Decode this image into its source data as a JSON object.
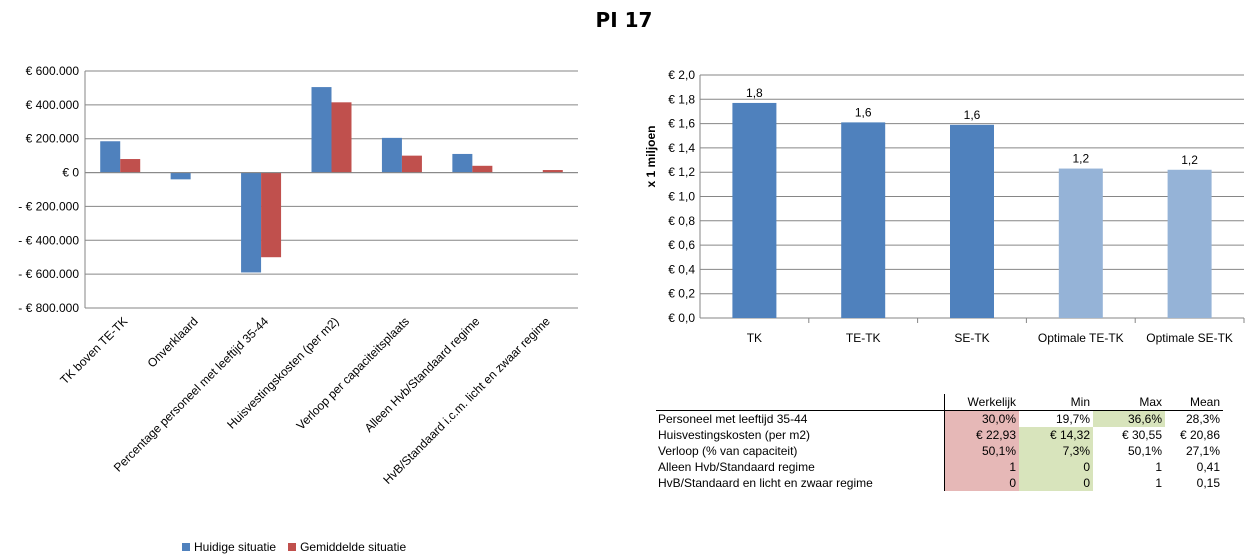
{
  "title": "PI 17",
  "colors": {
    "blue": "#4f81bd",
    "red": "#c0504d",
    "light_blue": "#95b3d7",
    "grid": "#868686",
    "highlight_red": "#e6b8b7",
    "highlight_green": "#d8e4bc"
  },
  "chart_data": [
    {
      "type": "bar",
      "title": "",
      "categories": [
        "TK boven TE-TK",
        "Onverklaard",
        "Percentage personeel met leeftijd 35-44",
        "Huisvestingskosten (per m2)",
        "Verloop per capaciteitsplaats",
        "Alleen Hvb/Standaard regime",
        "HvB/Standaard i.c.m. licht en zwaar regime"
      ],
      "series": [
        {
          "name": "Huidige situatie",
          "color": "#4f81bd",
          "values": [
            185000,
            -40000,
            -590000,
            505000,
            205000,
            110000,
            0
          ]
        },
        {
          "name": "Gemiddelde situatie",
          "color": "#c0504d",
          "values": [
            80000,
            0,
            -500000,
            415000,
            100000,
            40000,
            15000
          ]
        }
      ],
      "ylim": [
        -800000,
        600000
      ],
      "yticks": [
        600000,
        400000,
        200000,
        0,
        -200000,
        -400000,
        -600000,
        -800000
      ],
      "ytick_labels": [
        "€ 600.000",
        "€ 400.000",
        "€ 200.000",
        "€ 0",
        "- € 200.000",
        "- € 400.000",
        "- € 600.000",
        "- € 800.000"
      ],
      "legend_position": "bottom-left",
      "grid": true
    },
    {
      "type": "bar",
      "title": "",
      "ylabel": "x 1 miljoen",
      "categories": [
        "TK",
        "TE-TK",
        "SE-TK",
        "Optimale TE-TK",
        "Optimale SE-TK"
      ],
      "values": [
        1.77,
        1.61,
        1.59,
        1.23,
        1.22
      ],
      "value_labels": [
        "1,8",
        "1,6",
        "1,6",
        "1,2",
        "1,2"
      ],
      "bar_colors": [
        "#4f81bd",
        "#4f81bd",
        "#4f81bd",
        "#95b3d7",
        "#95b3d7"
      ],
      "ylim": [
        0,
        2.0
      ],
      "yticks": [
        2.0,
        1.8,
        1.6,
        1.4,
        1.2,
        1.0,
        0.8,
        0.6,
        0.4,
        0.2,
        0.0
      ],
      "ytick_labels": [
        "€ 2,0",
        "€ 1,8",
        "€ 1,6",
        "€ 1,4",
        "€ 1,2",
        "€ 1,0",
        "€ 0,8",
        "€ 0,6",
        "€ 0,4",
        "€ 0,2",
        "€ 0,0"
      ],
      "grid": true,
      "legend": "none"
    },
    {
      "type": "table",
      "columns": [
        "Werkelijk",
        "Min",
        "Max",
        "Mean"
      ],
      "rows": [
        {
          "label": "Personeel met leeftijd 35-44",
          "cells": [
            "30,0%",
            "19,7%",
            "36,6%",
            "28,3%"
          ],
          "hl": [
            "red",
            "",
            "green",
            ""
          ]
        },
        {
          "label": "Huisvestingskosten (per m2)",
          "cells": [
            "€ 22,93",
            "€ 14,32",
            "€ 30,55",
            "€ 20,86"
          ],
          "hl": [
            "red",
            "green",
            "",
            ""
          ]
        },
        {
          "label": "Verloop (% van capaciteit)",
          "cells": [
            "50,1%",
            "7,3%",
            "50,1%",
            "27,1%"
          ],
          "hl": [
            "red",
            "green",
            "",
            ""
          ]
        },
        {
          "label": "Alleen Hvb/Standaard regime",
          "cells": [
            "1",
            "0",
            "1",
            "0,41"
          ],
          "hl": [
            "red",
            "green",
            "",
            ""
          ]
        },
        {
          "label": "HvB/Standaard en licht en zwaar regime",
          "cells": [
            "0",
            "0",
            "1",
            "0,15"
          ],
          "hl": [
            "red",
            "green",
            "",
            ""
          ]
        }
      ]
    }
  ]
}
